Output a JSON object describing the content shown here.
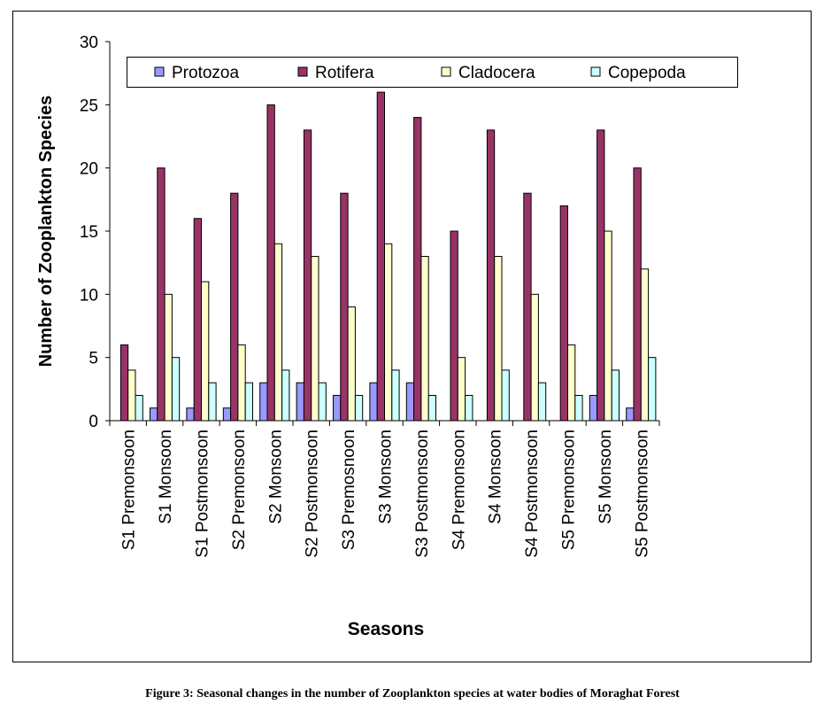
{
  "chart_data": {
    "type": "bar",
    "title": "",
    "xlabel": "Seasons",
    "ylabel": "Number of Zooplankton Species",
    "ylim": [
      0,
      30
    ],
    "yticks": [
      0,
      5,
      10,
      15,
      20,
      25,
      30
    ],
    "grid": false,
    "legend_position": "top",
    "categories": [
      "S1  Premonsoon",
      "S1  Monsoon",
      "S1  Postmonsoon",
      "S2  Premonsoon",
      "S2  Monsoon",
      "S2 Postmonsoon",
      "S3 Premosnoon",
      "S3 Monsoon",
      "S3 Postmonsoon",
      "S4 Premonsoon",
      "S4 Monsoon",
      "S4 Postmonsoon",
      "S5 Premonsoon",
      "S5 Monsoon",
      "S5 Postmonsoon"
    ],
    "series": [
      {
        "name": "Protozoa",
        "color": "#9999ff",
        "values": [
          0,
          1,
          1,
          1,
          3,
          3,
          2,
          3,
          3,
          0,
          0,
          0,
          0,
          2,
          1
        ]
      },
      {
        "name": "Rotifera",
        "color": "#993366",
        "values": [
          6,
          20,
          16,
          18,
          25,
          23,
          18,
          26,
          24,
          15,
          23,
          18,
          17,
          23,
          20
        ]
      },
      {
        "name": "Cladocera",
        "color": "#ffffcc",
        "values": [
          4,
          10,
          11,
          6,
          14,
          13,
          9,
          14,
          13,
          5,
          13,
          10,
          6,
          15,
          12
        ]
      },
      {
        "name": "Copepoda",
        "color": "#ccffff",
        "values": [
          2,
          5,
          3,
          3,
          4,
          3,
          2,
          4,
          2,
          2,
          4,
          3,
          2,
          4,
          5
        ]
      }
    ]
  },
  "caption": "Figure 3: Seasonal changes in the number of Zooplankton species at water bodies of Moraghat Forest"
}
